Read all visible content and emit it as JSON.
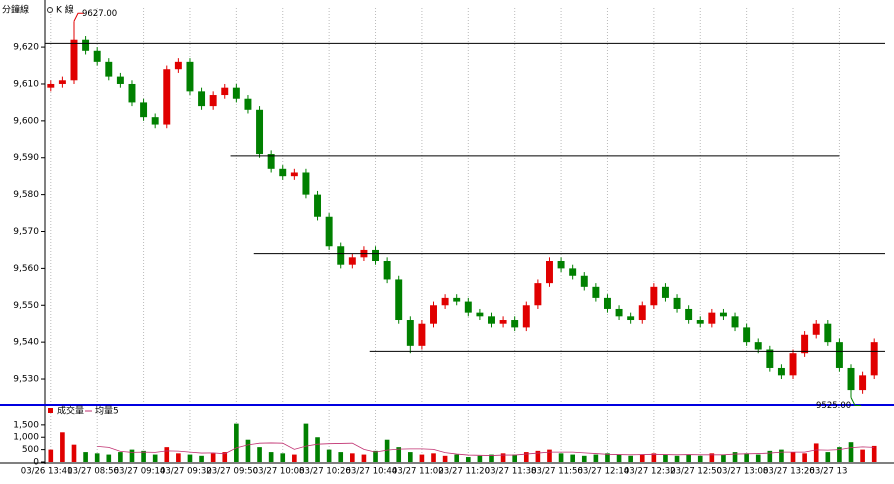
{
  "header": {
    "title": "分鐘線",
    "mode": "K 線"
  },
  "chart_data": [
    {
      "type": "candlestick",
      "up_color": "#e00000",
      "down_color": "#008000",
      "ylim": [
        9523.5,
        9630.6
      ],
      "yticks": [
        {
          "value": 9530,
          "label": "9,530"
        },
        {
          "value": 9540,
          "label": "9,540"
        },
        {
          "value": 9550,
          "label": "9,550"
        },
        {
          "value": 9560,
          "label": "9,560"
        },
        {
          "value": 9570,
          "label": "9,570"
        },
        {
          "value": 9580,
          "label": "9,580"
        },
        {
          "value": 9590,
          "label": "9,590"
        },
        {
          "value": 9600,
          "label": "9,600"
        },
        {
          "value": 9610,
          "label": "9,610"
        },
        {
          "value": 9620,
          "label": "9,620"
        }
      ],
      "open": [
        9609,
        9610,
        9611,
        9622,
        9619,
        9616,
        9612,
        9610,
        9605,
        9601,
        9599,
        9614,
        9616,
        9608,
        9604,
        9607,
        9609,
        9606,
        9603,
        9591,
        9587,
        9585,
        9586,
        9580,
        9574,
        9566,
        9561,
        9563,
        9565,
        9562,
        9557,
        9546,
        9539,
        9545,
        9550,
        9552,
        9551,
        9548,
        9547,
        9545,
        9546,
        9544,
        9550,
        9556,
        9562,
        9560,
        9558,
        9555,
        9552,
        9549,
        9547,
        9546,
        9550,
        9555,
        9552,
        9549,
        9546,
        9545,
        9548,
        9547,
        9544,
        9540,
        9538,
        9533,
        9531,
        9537,
        9542,
        9545,
        9540,
        9533,
        9527,
        9531
      ],
      "high": [
        9611,
        9612,
        9627,
        9623,
        9620,
        9617,
        9613,
        9611,
        9606,
        9602,
        9615,
        9617,
        9617,
        9609,
        9608,
        9610,
        9610,
        9607,
        9604,
        9592,
        9588,
        9587,
        9587,
        9581,
        9575,
        9567,
        9564,
        9566,
        9566,
        9563,
        9558,
        9547,
        9546,
        9551,
        9553,
        9553,
        9552,
        9549,
        9548,
        9547,
        9547,
        9551,
        9557,
        9563,
        9563,
        9561,
        9559,
        9556,
        9553,
        9550,
        9548,
        9551,
        9556,
        9556,
        9553,
        9550,
        9547,
        9549,
        9549,
        9548,
        9545,
        9541,
        9539,
        9534,
        9538,
        9543,
        9546,
        9546,
        9541,
        9534,
        9532,
        9541
      ],
      "low": [
        9608,
        9609,
        9610,
        9618,
        9615,
        9611,
        9609,
        9604,
        9600,
        9598,
        9598,
        9613,
        9607,
        9603,
        9603,
        9606,
        9605,
        9602,
        9590,
        9586,
        9584,
        9584,
        9579,
        9573,
        9565,
        9560,
        9560,
        9562,
        9561,
        9556,
        9545,
        9537,
        9538,
        9544,
        9549,
        9550,
        9547,
        9546,
        9544,
        9544,
        9543,
        9543,
        9549,
        9555,
        9559,
        9557,
        9554,
        9551,
        9548,
        9546,
        9545,
        9545,
        9549,
        9551,
        9548,
        9545,
        9544,
        9544,
        9546,
        9543,
        9539,
        9537,
        9532,
        9530,
        9530,
        9536,
        9541,
        9539,
        9532,
        9525,
        9526,
        9530
      ],
      "close": [
        9610,
        9611,
        9622,
        9619,
        9616,
        9612,
        9610,
        9605,
        9601,
        9599,
        9614,
        9616,
        9608,
        9604,
        9607,
        9609,
        9606,
        9603,
        9591,
        9587,
        9585,
        9586,
        9580,
        9574,
        9566,
        9561,
        9563,
        9565,
        9562,
        9557,
        9546,
        9539,
        9545,
        9550,
        9552,
        9551,
        9548,
        9547,
        9545,
        9546,
        9544,
        9550,
        9556,
        9562,
        9560,
        9558,
        9555,
        9552,
        9549,
        9547,
        9546,
        9550,
        9555,
        9552,
        9549,
        9546,
        9545,
        9548,
        9547,
        9544,
        9540,
        9538,
        9533,
        9531,
        9537,
        9542,
        9545,
        9540,
        9533,
        9527,
        9531,
        9540
      ],
      "hlines": [
        {
          "value": 9621,
          "from": 0
        },
        {
          "value": 9590.5,
          "from": 16,
          "to": 68
        },
        {
          "value": 9564,
          "from": 18
        },
        {
          "value": 9537.5,
          "from": 28
        }
      ],
      "annotations": [
        {
          "text": "9627.00",
          "value": 9627,
          "index": 2,
          "color": "#e00000"
        },
        {
          "text": "9525.00",
          "value": 9525,
          "index": 69,
          "color": "#008000"
        }
      ]
    },
    {
      "type": "bar",
      "ylim": [
        0,
        2100
      ],
      "yticks": [
        0,
        500,
        {
          "value": 1000,
          "label": "1,000"
        },
        {
          "value": 1500,
          "label": "1,500"
        }
      ],
      "categories": [
        "03/26 13:41",
        null,
        null,
        null,
        "03/27 08:56",
        null,
        null,
        null,
        "03/27 09:14",
        null,
        null,
        null,
        "03/27 09:32",
        null,
        null,
        null,
        "03/27 09:50",
        null,
        null,
        null,
        "03/27 10:08",
        null,
        null,
        null,
        "03/27 10:26",
        null,
        null,
        null,
        "03/27 10:44",
        null,
        null,
        null,
        "03/27 11:02",
        null,
        null,
        null,
        "03/27 11:20",
        null,
        null,
        null,
        "03/27 11:38",
        null,
        null,
        null,
        "03/27 11:56",
        null,
        null,
        null,
        "03/27 12:14",
        null,
        null,
        null,
        "03/27 12:32",
        null,
        null,
        null,
        "03/27 12:50",
        null,
        null,
        null,
        "03/27 13:08",
        null,
        null,
        null,
        "03/27 13:26",
        null,
        null,
        null,
        "03/27 13",
        null,
        null,
        null
      ],
      "series": [
        {
          "name": "成交量",
          "color": "#e00000",
          "values": [
            500,
            1200,
            700,
            400,
            350,
            300,
            400,
            500,
            450,
            300,
            600,
            350,
            300,
            250,
            350,
            400,
            1550,
            900,
            600,
            400,
            350,
            300,
            1550,
            1000,
            500,
            400,
            350,
            300,
            450,
            900,
            600,
            400,
            300,
            350,
            250,
            300,
            200,
            250,
            300,
            350,
            300,
            400,
            450,
            500,
            350,
            300,
            250,
            300,
            350,
            300,
            250,
            300,
            350,
            300,
            250,
            300,
            250,
            350,
            300,
            400,
            350,
            300,
            450,
            500,
            400,
            350,
            750,
            400,
            600,
            800,
            500,
            650
          ]
        },
        {
          "name": "均量5",
          "color": "#c03070",
          "values": [
            null,
            null,
            null,
            null,
            630,
            590,
            430,
            390,
            400,
            390,
            450,
            440,
            400,
            360,
            370,
            330,
            570,
            690,
            760,
            770,
            760,
            510,
            640,
            720,
            740,
            750,
            760,
            510,
            400,
            480,
            520,
            530,
            530,
            510,
            380,
            320,
            280,
            270,
            260,
            280,
            280,
            320,
            360,
            400,
            400,
            400,
            370,
            340,
            310,
            300,
            290,
            300,
            310,
            300,
            290,
            300,
            290,
            290,
            290,
            320,
            330,
            340,
            360,
            400,
            400,
            400,
            490,
            480,
            500,
            580,
            610,
            590
          ]
        }
      ]
    }
  ]
}
